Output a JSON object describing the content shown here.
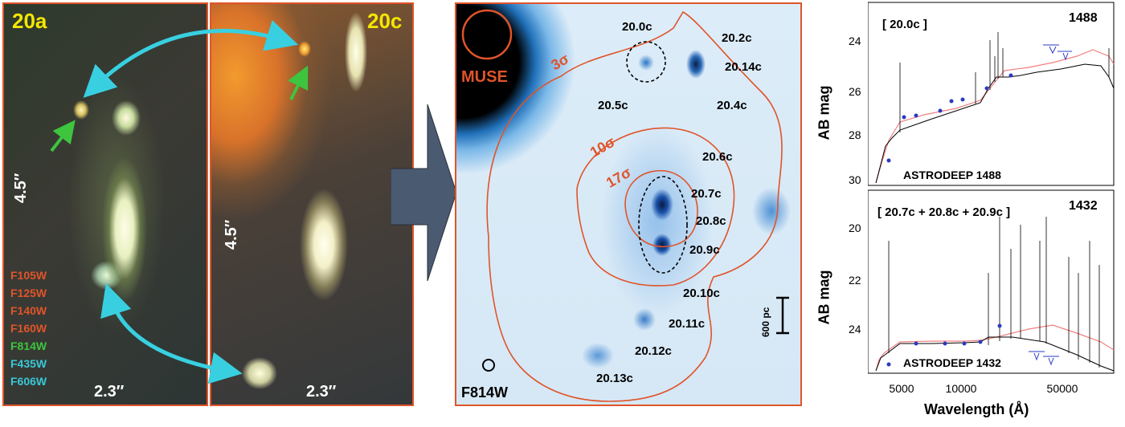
{
  "panel_a": {
    "title": "20a",
    "scale_vertical": "4.5″",
    "scale_horizontal": "2.3″",
    "filters": [
      {
        "name": "F105W",
        "color": "#e0542a"
      },
      {
        "name": "F125W",
        "color": "#e0542a"
      },
      {
        "name": "F140W",
        "color": "#e0542a"
      },
      {
        "name": "F160W",
        "color": "#e0542a"
      },
      {
        "name": "F814W",
        "color": "#3ec43e"
      },
      {
        "name": "F435W",
        "color": "#38c8d8"
      },
      {
        "name": "F606W",
        "color": "#38c8d8"
      }
    ]
  },
  "panel_c": {
    "title": "20c",
    "scale_vertical": "4.5″",
    "scale_horizontal": "2.3″"
  },
  "colors": {
    "frame": "#e0542a",
    "cyan_arrow": "#38d0e0",
    "green_arrow": "#3ec43e",
    "title_yellow": "#f4e600",
    "sed_model": "#f08080",
    "sed_points": "#2a3ac0"
  },
  "map": {
    "muse_label": "MUSE",
    "filter_label": "F814W",
    "scale_bar_label": "600 pc",
    "contours": [
      "3σ",
      "10σ",
      "17σ"
    ],
    "labels": [
      "20.0c",
      "20.2c",
      "20.14c",
      "20.5c",
      "20.4c",
      "20.6c",
      "20.7c",
      "20.8c",
      "20.9c",
      "20.10c",
      "20.11c",
      "20.12c",
      "20.13c"
    ]
  },
  "sed_top": {
    "bracket": "[ 20.0c ]",
    "id": "1488",
    "catalog": "ASTRODEEP 1488",
    "ylabel": "AB mag",
    "yticks": [
      "24",
      "26",
      "28",
      "30"
    ]
  },
  "sed_bottom": {
    "bracket": "[ 20.7c + 20.8c + 20.9c ]",
    "id": "1432",
    "catalog": "ASTRODEEP 1432",
    "ylabel": "AB mag",
    "yticks": [
      "20",
      "22",
      "24"
    ]
  },
  "xaxis": {
    "label": "Wavelength (Å)",
    "ticks": [
      "5000",
      "10000",
      "50000"
    ]
  }
}
